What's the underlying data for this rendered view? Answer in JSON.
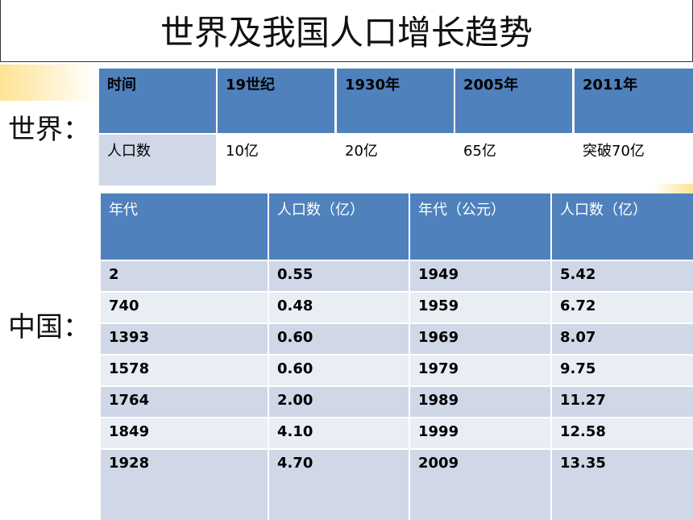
{
  "header": {
    "title": "世界及我国人口增长趋势"
  },
  "world": {
    "label": "世界：",
    "table": {
      "header": [
        "时间",
        "19世纪",
        "1930年",
        "2005年",
        "2011年"
      ],
      "rows": [
        [
          "人口数",
          "10亿",
          "20亿",
          "65亿",
          "突破70亿"
        ]
      ]
    }
  },
  "china": {
    "label": "中国：",
    "table": {
      "header": [
        "年代",
        "人口数（亿）",
        "年代（公元）",
        "人口数（亿）"
      ],
      "rows": [
        [
          "2",
          "0.55",
          "1949",
          "5.42"
        ],
        [
          "740",
          "0.48",
          "1959",
          "6.72"
        ],
        [
          "1393",
          "0.60",
          "1969",
          "8.07"
        ],
        [
          "1578",
          "0.60",
          "1979",
          "9.75"
        ],
        [
          "1764",
          "2.00",
          "1989",
          "11.27"
        ],
        [
          "1849",
          "4.10",
          "1999",
          "12.58"
        ],
        [
          "1928",
          "4.70",
          "2009",
          "13.35"
        ]
      ]
    }
  }
}
